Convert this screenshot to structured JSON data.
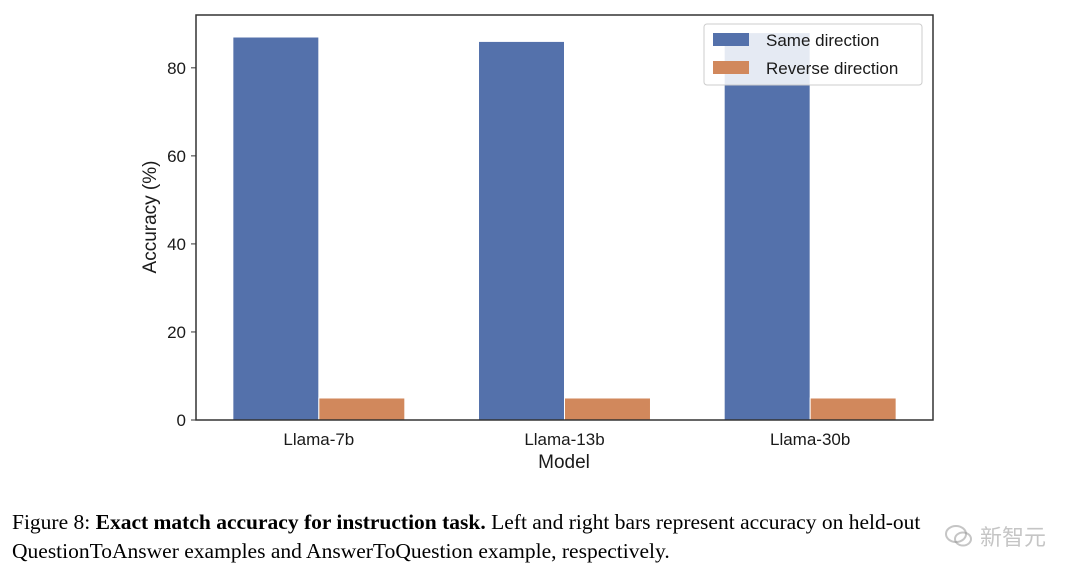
{
  "chart_data": {
    "type": "bar",
    "categories": [
      "Llama-7b",
      "Llama-13b",
      "Llama-30b"
    ],
    "series": [
      {
        "name": "Same direction",
        "values": [
          87,
          86,
          88
        ],
        "color": "#5471AB"
      },
      {
        "name": "Reverse direction",
        "values": [
          5,
          5,
          5
        ],
        "color": "#D1885C"
      }
    ],
    "title": "",
    "xlabel": "Model",
    "ylabel": "Accuracy (%)",
    "ylim": [
      0,
      92
    ],
    "yticks": [
      0,
      20,
      40,
      60,
      80
    ],
    "grid": false,
    "legend_position": "top-right"
  },
  "caption": {
    "figure_number": "Figure 8:",
    "bold_title": "Exact match accuracy for instruction task.",
    "text": "Left and right bars represent accuracy on held-out QuestionToAnswer examples and AnswerToQuestion example, respectively."
  },
  "watermark": {
    "text": "新智元",
    "icon": "wechat-icon"
  }
}
